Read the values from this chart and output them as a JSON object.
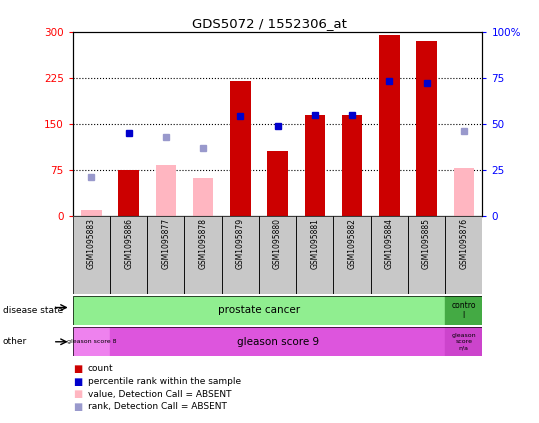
{
  "title": "GDS5072 / 1552306_at",
  "samples": [
    "GSM1095883",
    "GSM1095886",
    "GSM1095877",
    "GSM1095878",
    "GSM1095879",
    "GSM1095880",
    "GSM1095881",
    "GSM1095882",
    "GSM1095884",
    "GSM1095885",
    "GSM1095876"
  ],
  "count_values": [
    null,
    75,
    null,
    null,
    220,
    105,
    165,
    165,
    295,
    285,
    null
  ],
  "count_absent": [
    10,
    null,
    null,
    62,
    null,
    null,
    null,
    null,
    null,
    null,
    null
  ],
  "rank_pct": [
    null,
    45,
    null,
    null,
    54,
    49,
    55,
    55,
    73,
    72,
    null
  ],
  "rank_absent_pct": [
    21,
    null,
    43,
    37,
    null,
    null,
    null,
    null,
    null,
    null,
    46
  ],
  "value_absent": [
    null,
    null,
    82,
    62,
    null,
    null,
    null,
    null,
    null,
    null,
    78
  ],
  "ylim_left": [
    0,
    300
  ],
  "ylim_right": [
    0,
    100
  ],
  "yticks_left": [
    0,
    75,
    150,
    225,
    300
  ],
  "yticks_right": [
    0,
    25,
    50,
    75,
    100
  ],
  "bar_color": "#CC0000",
  "bar_absent_color": "#FFB6C1",
  "rank_color": "#0000CC",
  "rank_absent_color": "#9999CC",
  "plot_bg": "#FFFFFF",
  "disease_color": "#90EE90",
  "control_color": "#44AA44",
  "gleason8_color": "#EE82EE",
  "gleason9_color": "#DD55DD",
  "gleasonna_color": "#CC44CC",
  "legend_items": [
    "count",
    "percentile rank within the sample",
    "value, Detection Call = ABSENT",
    "rank, Detection Call = ABSENT"
  ],
  "legend_colors": [
    "#CC0000",
    "#0000CC",
    "#FFB6C1",
    "#9999CC"
  ]
}
